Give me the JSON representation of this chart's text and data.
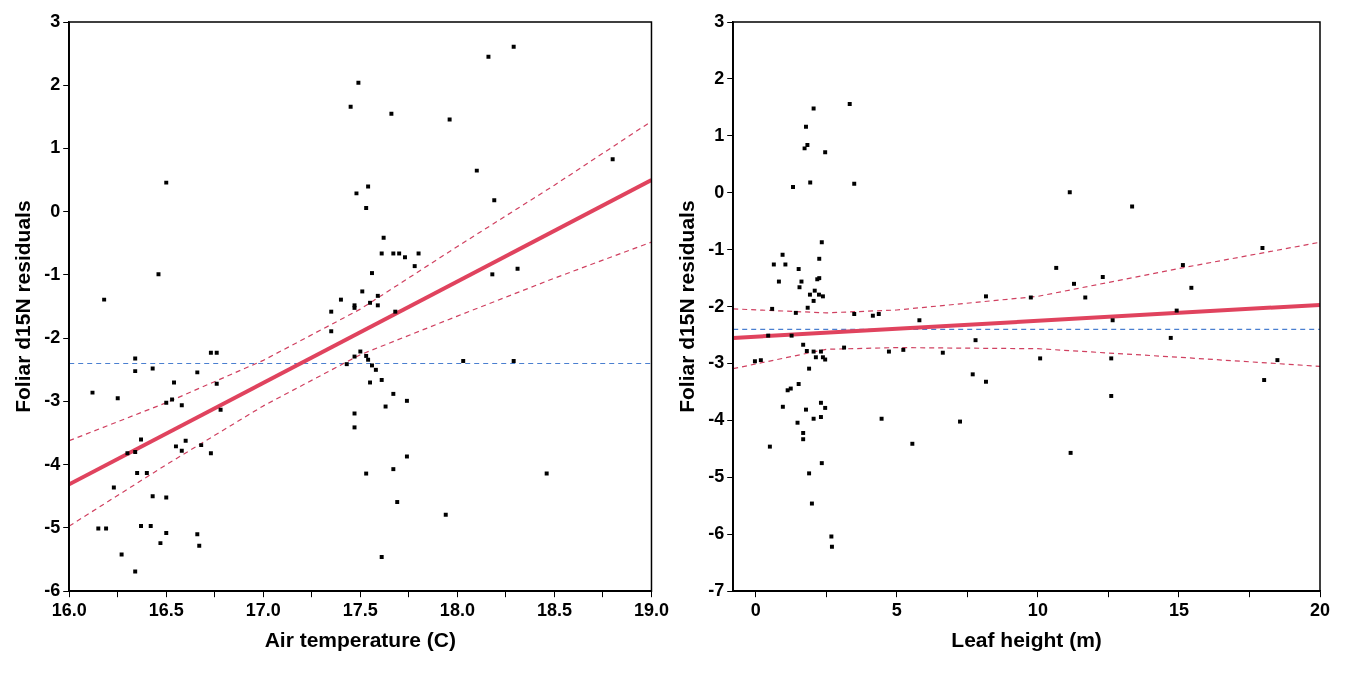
{
  "chart_data": [
    {
      "type": "scatter",
      "xlabel": "Air temperature (C)",
      "ylabel": "Foliar d15N residuals",
      "xlim": [
        16,
        19
      ],
      "ylim": [
        -6,
        3
      ],
      "xticks": [
        {
          "value": 16,
          "label": "16.0"
        },
        {
          "value": 16.25,
          "label": null
        },
        16.5,
        {
          "value": 16.75,
          "label": null
        },
        {
          "value": 17,
          "label": "17.0"
        },
        {
          "value": 17.25,
          "label": null
        },
        17.5,
        {
          "value": 17.75,
          "label": null
        },
        {
          "value": 18,
          "label": "18.0"
        },
        {
          "value": 18.25,
          "label": null
        },
        18.5,
        {
          "value": 18.75,
          "label": null
        },
        {
          "value": 19,
          "label": "19.0"
        }
      ],
      "yticks": [
        3,
        2,
        1,
        0,
        -1,
        -2,
        -3,
        -4,
        -5,
        -6
      ],
      "ref_lines": [
        {
          "axis": "y",
          "value": -2.4,
          "color": "#4a7fd0",
          "line_style": "dashed"
        }
      ],
      "series": [
        {
          "type": "scatter",
          "marker": "square",
          "color": "#000000",
          "x": [
            16.12,
            16.18,
            16.25,
            16.34,
            16.34,
            16.43,
            16.5,
            16.46,
            16.54,
            16.5,
            16.53,
            16.58,
            16.66,
            16.73,
            16.76,
            16.76,
            16.78,
            16.37,
            16.3,
            16.34,
            16.55,
            16.58,
            16.6,
            16.68,
            16.73,
            16.35,
            16.4,
            16.23,
            16.43,
            16.5,
            16.15,
            16.19,
            16.37,
            16.42,
            16.5,
            16.66,
            16.67,
            16.47,
            16.27,
            16.34,
            17.35,
            17.4,
            17.35,
            17.43,
            17.45,
            17.47,
            17.47,
            17.49,
            17.66,
            17.96,
            18.16,
            18.29,
            18.1,
            18.19,
            18.8,
            17.48,
            17.54,
            17.53,
            17.62,
            17.61,
            17.67,
            17.7,
            17.73,
            17.8,
            17.78,
            17.56,
            18.18,
            18.31,
            17.51,
            17.47,
            17.47,
            17.55,
            17.59,
            17.59,
            17.68,
            17.5,
            17.47,
            17.53,
            17.54,
            17.56,
            17.58,
            18.03,
            18.29,
            17.55,
            17.61,
            17.67,
            17.63,
            17.74,
            17.74,
            17.67,
            17.53,
            18.46,
            17.69,
            17.94,
            17.61
          ],
          "values": [
            -2.86,
            -1.39,
            -2.95,
            -2.32,
            -2.52,
            -2.48,
            0.46,
            -0.99,
            -2.7,
            -3.02,
            -2.97,
            -3.06,
            -2.54,
            -2.23,
            -2.23,
            -2.72,
            -3.13,
            -3.6,
            -3.82,
            -3.8,
            -3.71,
            -3.78,
            -3.62,
            -3.69,
            -3.82,
            -4.13,
            -4.13,
            -4.36,
            -4.5,
            -4.52,
            -5.01,
            -5.01,
            -4.97,
            -4.97,
            -5.08,
            -5.1,
            -5.28,
            -5.24,
            -5.42,
            -5.69,
            -1.58,
            -1.39,
            -1.89,
            -2.41,
            1.66,
            -3.19,
            -3.41,
            2.04,
            1.55,
            1.46,
            2.45,
            2.61,
            0.65,
            0.18,
            0.83,
            0.29,
            0.4,
            0.06,
            -0.41,
            -0.66,
            -0.66,
            -0.66,
            -0.72,
            -0.66,
            -0.86,
            -0.97,
            -0.99,
            -0.9,
            -1.26,
            -1.48,
            -1.52,
            -1.44,
            -1.33,
            -1.48,
            -1.58,
            -2.21,
            -2.29,
            -2.28,
            -2.34,
            -2.43,
            -2.5,
            -2.36,
            -2.36,
            -2.7,
            -2.66,
            -2.88,
            -3.08,
            -2.99,
            -3.87,
            -4.07,
            -4.14,
            -4.14,
            -4.59,
            -4.79,
            -5.46
          ]
        },
        {
          "type": "line",
          "line_style": "solid",
          "color": "#e0435e",
          "x": [
            16,
            19
          ],
          "values": [
            -4.31,
            0.5
          ]
        },
        {
          "type": "line",
          "line_style": "dashed",
          "color": "#d04060",
          "x": [
            16,
            16.5,
            17,
            17.5,
            18,
            18.5,
            19
          ],
          "values": [
            -3.62,
            -3.02,
            -2.35,
            -1.54,
            -0.55,
            0.42,
            1.43
          ]
        },
        {
          "type": "line",
          "line_style": "dashed",
          "color": "#d04060",
          "x": [
            16,
            16.5,
            17,
            17.5,
            18,
            18.5,
            19
          ],
          "values": [
            -4.97,
            -4.0,
            -3.07,
            -2.26,
            -1.65,
            -1.05,
            -0.48
          ]
        }
      ]
    },
    {
      "type": "scatter",
      "xlabel": "Leaf height (m)",
      "ylabel": "Foliar d15N residuals",
      "xlim": [
        -0.8,
        20
      ],
      "ylim": [
        -7,
        3
      ],
      "xticks": [
        0,
        {
          "value": 2.5,
          "label": null
        },
        5,
        {
          "value": 7.5,
          "label": null
        },
        10,
        {
          "value": 12.5,
          "label": null
        },
        15,
        {
          "value": 17.5,
          "label": null
        },
        20
      ],
      "yticks": [
        3,
        2,
        1,
        0,
        -1,
        -2,
        -3,
        -4,
        -5,
        -6,
        -7
      ],
      "ref_lines": [
        {
          "axis": "y",
          "value": -2.4,
          "color": "#4a7fd0",
          "line_style": "dashed"
        }
      ],
      "series": [
        {
          "type": "scatter",
          "marker": "square",
          "color": "#000000",
          "x": [
            2.05,
            3.33,
            1.78,
            1.83,
            1.73,
            2.46,
            1.93,
            1.32,
            3.49,
            2.34,
            0.95,
            0.64,
            1.05,
            2.25,
            1.52,
            0.82,
            1.62,
            1.55,
            2.25,
            2.18,
            2.09,
            1.92,
            2.38,
            2.24,
            2.05,
            1.84,
            0.58,
            1.42,
            3.49,
            4.15,
            4.36,
            0.44,
            1.27,
            1.68,
            3.13,
            1.81,
            2.05,
            2.31,
            2.13,
            2.38,
            2.46,
            -0.03,
            0.18,
            1.89,
            1.52,
            1.13,
            1.24,
            0.96,
            1.78,
            2.31,
            2.46,
            2.05,
            2.31,
            1.48,
            1.68,
            1.68,
            0.5,
            2.34,
            1.89,
            1.99,
            2.68,
            2.7,
            4.46,
            4.72,
            5.23,
            5.55,
            5.8,
            6.63,
            7.79,
            8.16,
            7.69,
            8.16,
            7.24,
            9.75,
            10.08,
            10.65,
            11.13,
            11.28,
            11.16,
            11.68,
            12.3,
            12.65,
            12.6,
            12.6,
            13.34,
            14.71,
            14.92,
            15.14,
            15.44,
            17.96,
            18.02,
            18.49
          ],
          "values": [
            1.48,
            1.56,
            1.16,
            0.84,
            0.78,
            0.71,
            0.18,
            0.1,
            0.16,
            -0.87,
            -1.09,
            -1.26,
            -1.26,
            -1.16,
            -1.34,
            -1.56,
            -1.56,
            -1.66,
            -1.5,
            -1.52,
            -1.72,
            -1.79,
            -1.82,
            -1.79,
            -1.9,
            -2.02,
            -2.04,
            -2.11,
            -2.13,
            -2.16,
            -2.13,
            -2.51,
            -2.51,
            -2.67,
            -2.72,
            -2.78,
            -2.79,
            -2.79,
            -2.89,
            -2.89,
            -2.93,
            -2.96,
            -2.94,
            -3.09,
            -3.36,
            -3.47,
            -3.44,
            -3.76,
            -3.81,
            -3.69,
            -3.78,
            -3.97,
            -3.94,
            -4.04,
            -4.22,
            -4.33,
            -4.46,
            -4.75,
            -4.93,
            -5.46,
            -6.04,
            -6.22,
            -3.97,
            -2.79,
            -2.76,
            -4.41,
            -2.24,
            -2.81,
            -2.59,
            -1.82,
            -3.19,
            -3.32,
            -4.02,
            -1.84,
            -2.91,
            -1.32,
            0.01,
            -1.6,
            -4.57,
            -1.84,
            -1.48,
            -2.24,
            -2.91,
            -3.57,
            -0.24,
            -2.55,
            -2.07,
            -1.27,
            -1.67,
            -0.97,
            -3.29,
            -2.94
          ]
        },
        {
          "type": "line",
          "line_style": "solid",
          "color": "#e0435e",
          "x": [
            -0.8,
            20
          ],
          "values": [
            -2.55,
            -1.97
          ]
        },
        {
          "type": "line",
          "line_style": "dashed",
          "color": "#d04060",
          "x": [
            -0.8,
            2.5,
            5,
            10,
            15,
            20
          ],
          "values": [
            -2.04,
            -2.11,
            -2.06,
            -1.82,
            -1.33,
            -0.87
          ]
        },
        {
          "type": "line",
          "line_style": "dashed",
          "color": "#d04060",
          "x": [
            -0.8,
            2.5,
            5,
            10,
            15,
            20
          ],
          "values": [
            -3.09,
            -2.75,
            -2.72,
            -2.74,
            -2.89,
            -3.05
          ]
        }
      ]
    }
  ]
}
